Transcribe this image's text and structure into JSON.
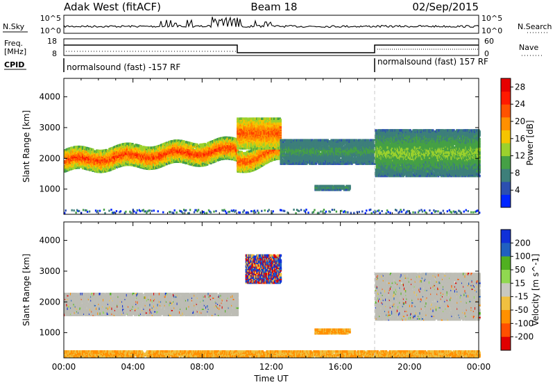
{
  "header": {
    "site": "Adak West (fitACF)",
    "beam": "Beam 18",
    "date": "02/Sep/2015"
  },
  "top_panels": {
    "nsky_label": "N.Sky",
    "nsearch_label": "N.Search",
    "freq_label_1": "Freq.",
    "freq_label_2": "[MHz]",
    "nave_label": "Nave",
    "cpid_label": "CPID",
    "noise_ticks": [
      "10^5",
      "10^0"
    ],
    "freq_ticks": [
      "18",
      "8"
    ],
    "nave_ticks": [
      "60",
      "0"
    ],
    "cpid_left": "normalsound (fast) -157 RF",
    "cpid_right": "normalsound (fast) 157 RF"
  },
  "colors": {
    "power_scale": [
      "#0026ff",
      "#2c4fb0",
      "#3d7f7a",
      "#45a045",
      "#9bd12d",
      "#f5c400",
      "#ff9000",
      "#ff5200",
      "#ff1a00",
      "#e60000"
    ],
    "velocity_scale": [
      "#1030d8",
      "#2060c0",
      "#50b020",
      "#90d850",
      "#c8c8c0",
      "#f0c040",
      "#ff9000",
      "#ff5000",
      "#e00000"
    ],
    "grey_scatter": "#bdbdb5"
  },
  "chart_data": [
    {
      "type": "heatmap",
      "panel": "power",
      "xlabel": "Time UT",
      "ylabel": "Slant Range [km]",
      "colorbar_label": "Power [dB]",
      "x_ticks": [
        "00:00",
        "04:00",
        "08:00",
        "12:00",
        "16:00",
        "20:00",
        "00:00"
      ],
      "y_ticks": [
        "1000",
        "2000",
        "3000",
        "4000"
      ],
      "y_range": [
        180,
        4600
      ],
      "colorbar_ticks": [
        "4",
        "8",
        "12",
        "16",
        "20",
        "24",
        "28"
      ],
      "colorbar_range": [
        0,
        30
      ],
      "regions": [
        {
          "t0": 0.0,
          "t1": 10.0,
          "r0": 1550,
          "r1": 2250,
          "pmin": 8,
          "pmax": 28,
          "trend": "rising"
        },
        {
          "t0": 10.0,
          "t1": 12.5,
          "r0": 1550,
          "r1": 2200,
          "pmin": 10,
          "pmax": 26,
          "trend": "rising"
        },
        {
          "t0": 10.0,
          "t1": 12.5,
          "r0": 2300,
          "r1": 3300,
          "pmin": 10,
          "pmax": 26,
          "trend": "flat"
        },
        {
          "t0": 12.5,
          "t1": 18.0,
          "r0": 1800,
          "r1": 2600,
          "pmin": 4,
          "pmax": 10,
          "trend": "flat"
        },
        {
          "t0": 14.5,
          "t1": 16.5,
          "r0": 950,
          "r1": 1100,
          "pmin": 4,
          "pmax": 10,
          "trend": "flat"
        },
        {
          "t0": 18.0,
          "t1": 24.0,
          "r0": 1400,
          "r1": 2900,
          "pmin": 4,
          "pmax": 14,
          "trend": "flat"
        }
      ]
    },
    {
      "type": "heatmap",
      "panel": "velocity",
      "xlabel": "Time UT",
      "ylabel": "Slant Range [km]",
      "colorbar_label": "Velocity [m s^-1]",
      "x_ticks": [
        "00:00",
        "04:00",
        "08:00",
        "12:00",
        "16:00",
        "20:00",
        "00:00"
      ],
      "y_ticks": [
        "1000",
        "2000",
        "3000",
        "4000"
      ],
      "y_range": [
        180,
        4600
      ],
      "colorbar_ticks": [
        "200",
        "100",
        "50",
        "15",
        "-15",
        "-50",
        "-100",
        "-200"
      ],
      "regions": [
        {
          "t0": 0.0,
          "t1": 10.0,
          "r0": 1550,
          "r1": 2250,
          "velocity": 0
        },
        {
          "t0": 10.5,
          "t1": 12.5,
          "r0": 2600,
          "r1": 3500,
          "velocity": 150
        },
        {
          "t0": 14.5,
          "t1": 16.5,
          "r0": 950,
          "r1": 1100,
          "velocity": -60
        },
        {
          "t0": 0.0,
          "t1": 24.0,
          "r0": 200,
          "r1": 400,
          "velocity": -40
        },
        {
          "t0": 18.0,
          "t1": 24.0,
          "r0": 1400,
          "r1": 2900,
          "velocity": 0
        }
      ]
    }
  ]
}
